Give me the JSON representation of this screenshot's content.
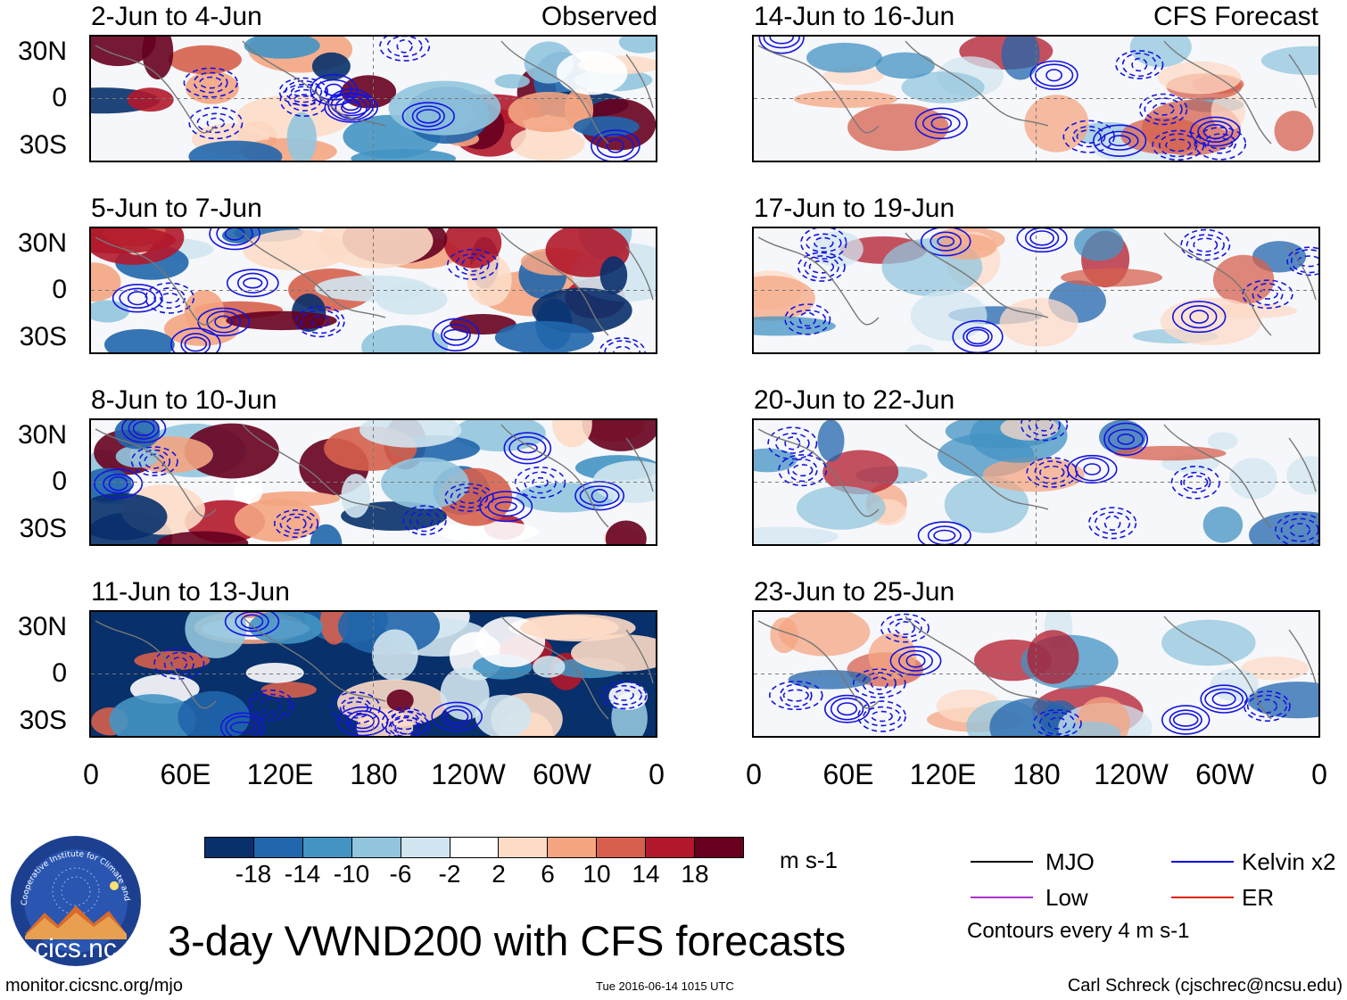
{
  "headers": {
    "observed_tag": "Observed",
    "forecast_tag": "CFS Forecast"
  },
  "panels": {
    "left": [
      {
        "title": "2-Jun to 4-Jun"
      },
      {
        "title": "5-Jun to 7-Jun"
      },
      {
        "title": "8-Jun to 10-Jun"
      },
      {
        "title": "11-Jun to 13-Jun"
      }
    ],
    "right": [
      {
        "title": "14-Jun to 16-Jun"
      },
      {
        "title": "17-Jun to 19-Jun"
      },
      {
        "title": "20-Jun to 22-Jun"
      },
      {
        "title": "23-Jun to 25-Jun"
      }
    ]
  },
  "axes": {
    "lat_labels": [
      "30N",
      "0",
      "30S"
    ],
    "lon_labels": [
      "0",
      "60E",
      "120E",
      "180",
      "120W",
      "60W",
      "0"
    ]
  },
  "colorbar": {
    "labels": [
      "-18",
      "-14",
      "-10",
      "-6",
      "-2",
      "2",
      "6",
      "10",
      "14",
      "18"
    ],
    "colors": [
      "#08306b",
      "#2166ac",
      "#4393c3",
      "#92c5de",
      "#d1e5f0",
      "#ffffff",
      "#fddbc7",
      "#f4a582",
      "#d6604d",
      "#b2182b",
      "#67001f"
    ],
    "units": "m s-1"
  },
  "legend": {
    "mjo": "MJO",
    "kelvin": "Kelvin x2",
    "low": "Low",
    "er": "ER",
    "contours_note": "Contours every 4 m s-1",
    "mjo_color": "#000000",
    "kelvin_color": "#0000dd",
    "low_color": "#aa33cc",
    "er_color": "#dd2200"
  },
  "logo": {
    "text": "cics.nc",
    "ring_text": "Cooperative Institute for Climate and Satellites"
  },
  "title": "3-day VWND200 with CFS forecasts",
  "footer": {
    "url": "monitor.cicsnc.org/mjo",
    "timestamp": "Tue 2016-06-14 1015 UTC",
    "author": "Carl Schreck (cjschrec@ncsu.edu)"
  }
}
